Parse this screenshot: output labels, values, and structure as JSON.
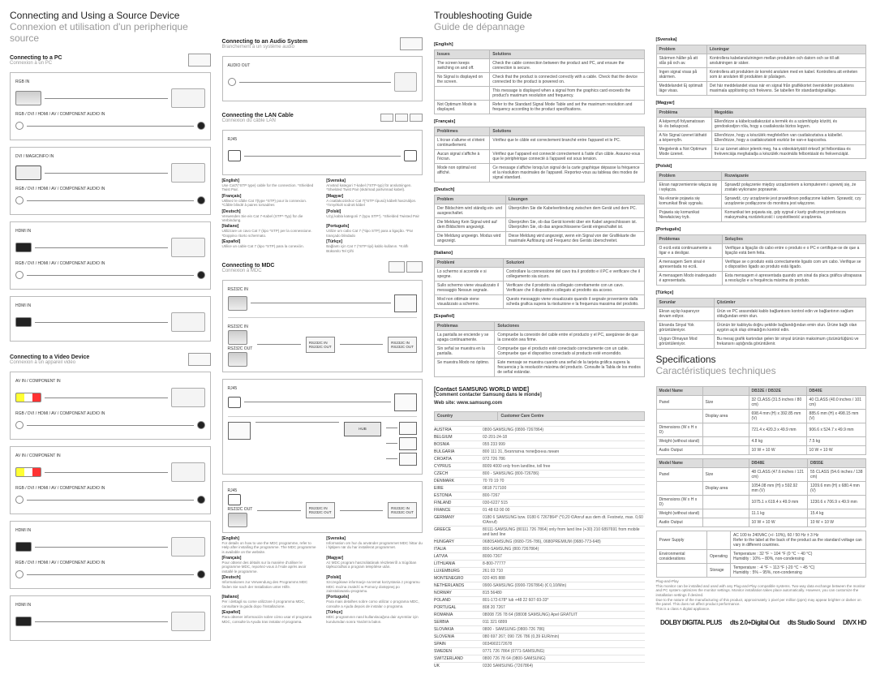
{
  "section1": {
    "title_en": "Connecting and Using a Source Device",
    "title_fr": "Connexion et utilisation d'un peripherique source",
    "connecting_pc_en": "Connecting to a PC",
    "connecting_pc_fr": "Connexion à un PC",
    "labels": {
      "rgb_in": "RGB IN",
      "rgb_combo": "RGB / DVI / HDMI / AV / COMPONENT AUDIO IN",
      "dvi": "DVI / MAGICINFO IN",
      "hdmi_in": "HDMI IN",
      "av_in": "AV IN / COMPONENT IN",
      "connecting_video_en": "Connecting to a Video Device",
      "connecting_video_fr": "Connexion à un appareil vidéo"
    }
  },
  "section2": {
    "audio_en": "Connecting to an Audio System",
    "audio_fr": "Branchement à un système audio",
    "audio_out": "AUDIO OUT",
    "lan_en": "Connecting the LAN Cable",
    "lan_fr": "Connexion du câble LAN",
    "rj45": "RJ45",
    "lang_notes": {
      "en": {
        "title": "[English]",
        "body": "Use Cat7(*STP type) cable for the connection. *Shielded Twist Pair."
      },
      "fr": {
        "title": "[Français]",
        "body": "Utilisez le câble Cat 7(type *STP) pour la connexion. *Câble blindé à paires torsadées"
      },
      "de": {
        "title": "[Deutsch]",
        "body": "Verwenden Sie ein Cat 7-Kabel (STP*-Typ) für die Verbindung."
      },
      "it": {
        "title": "[Italiano]",
        "body": "Utilizzare un cavo Cat 7 (tipo *STP) per la connessione. *Doppino ritorto schermato."
      },
      "es": {
        "title": "[Español]",
        "body": "Utilice un cable Cat 7 (tipo *STP) para la conexión."
      },
      "sv": {
        "title": "[Svenska]",
        "body": "Använd kategori 7-kabel (*STP-typ) för anslutningen. *Shielded Twist Pair (skärmad partvinnad kabel)."
      },
      "hu": {
        "title": "[Magyar]",
        "body": "A csatlakozáshoz Cat 7(*STP típusú) kábelt használjon. *Árnyékolt sodrott kábel"
      },
      "pl": {
        "title": "[Polski]",
        "body": "Użyj kabla kategorii 7 (typu STP*). *Shielded Twisted Pair"
      },
      "pt": {
        "title": "[Português]",
        "body": "Utilize um cabo Cat 7 (*tipo STP) para a ligação. *Par trançado blindado"
      },
      "tr": {
        "title": "[Türkçe]",
        "body": "Bağlantı için Cat 7 (*STP tipi) kablo kullanın. *Kılıflı Bükümlü Tel Çifti"
      }
    },
    "mdc_en": "Connecting to MDC",
    "mdc_fr": "Connexion à MDC",
    "rs232c_in": "RS232C IN",
    "rs232c_out": "RS232C OUT",
    "hub": "HUB",
    "mdc_notes": {
      "en": {
        "title": "[English]",
        "body": "For details on how to use the MDC programme, refer to Help after installing the programme. The MDC programme is available on the website."
      },
      "fr": {
        "title": "[Français]",
        "body": "Pour obtenir des détails sur la manière d'utiliser le programme MDC, reportez-vous à l'Aide après avoir installé le programme."
      },
      "de": {
        "title": "[Deutsch]",
        "body": "Informationen zur Verwendung des Programms MDC finden Sie nach der Installation unter Hilfe."
      },
      "it": {
        "title": "[Italiano]",
        "body": "Per i dettagli su come utilizzare il programma MDC, consultare la guida dopo l'installazione."
      },
      "es": {
        "title": "[Español]",
        "body": "Para obtener información sobre cómo usar el programa MDC, consulte la Ayuda tras instalar el programa."
      },
      "tr": {
        "title": "[Türkçe]",
        "body": "MDC programının nasıl kullanılacağına dair ayrıntılar için kurulumdan sonra Yardım'a bakın."
      },
      "sv": {
        "title": "[Svenska]",
        "body": "Information om hur du använder programmet MDC hittar du i hjälpen när du har installerat programmet."
      },
      "hu": {
        "title": "[Magyar]",
        "body": "Az MDC program használatának részleteiről a Súgóban tájékozódhat a program telepítése után."
      },
      "pl": {
        "title": "[Polski]",
        "body": "Szczegółowe informacje na temat korzystania z programu MDC można znaleźć w Pomocy dostępnej po zainstalowaniu programu."
      },
      "pt": {
        "title": "[Português]",
        "body": "Para mais detalhes sobre como utilizar o programa MDC, consulte a Ajuda depois de instalar o programa."
      }
    }
  },
  "trouble": {
    "title_en": "Troubleshooting Guide",
    "title_fr": "Guide de dépannage",
    "langs": {
      "English": {
        "cols": [
          "Issues",
          "Solutions"
        ],
        "rows": [
          [
            "The screen keeps switching on and off.",
            "Check the cable connection between the product and PC, and ensure the connection is secure."
          ],
          [
            "No Signal is displayed on the screen.",
            "Check that the product is connected correctly with a cable. Check that the device connected to the product is powered on."
          ],
          [
            "",
            "This message is displayed when a signal from the graphics card exceeds the product's maximum resolution and frequency."
          ],
          [
            "Not Optimum Mode is displayed.",
            "Refer to the Standard Signal Mode Table and set the maximum resolution and frequency according to the product specifications."
          ]
        ]
      },
      "Français": {
        "cols": [
          "Problèmes",
          "Solutions"
        ],
        "rows": [
          [
            "L'écran s'allume et s'éteint continuellement.",
            "Vérifiez que le câble est correctement branché entre l'appareil et le PC."
          ],
          [
            "Aucun signal s'affiche à l'écran.",
            "Vérifiez que l'appareil est connecté correctement à l'aide d'un câble. Assurez-vous que le périphérique connecté à l'appareil est sous tension."
          ],
          [
            "Mode non optimal est affiché.",
            "Ce message s'affiche lorsqu'un signal de la carte graphique dépasse la fréquence et la résolution maximales de l'appareil. Reportez-vous au tableau des modes de signal standard."
          ]
        ]
      },
      "Deutsch": {
        "cols": [
          "Problem",
          "Lösungen"
        ],
        "rows": [
          [
            "Der Bildschirm wird ständig ein- und ausgeschaltet.",
            "Überprüfen Sie die Kabelverbindung zwischen dem Gerät und dem PC."
          ],
          [
            "Die Meldung Kein Signal wird auf dem Bildschirm angezeigt.",
            "Überprüfen Sie, ob das Gerät korrekt über ein Kabel angeschlossen ist. Überprüfen Sie, ob das angeschlossene Gerät eingeschaltet ist."
          ],
          [
            "Die Meldung ungeeign. Modus wird angezeigt.",
            "Diese Meldung wird angezeigt, wenn ein Signal von der Grafikkarte die maximale Auflösung und Frequenz des Geräts überschreitet."
          ]
        ]
      },
      "Italiano": {
        "cols": [
          "Problemi",
          "Soluzioni"
        ],
        "rows": [
          [
            "Lo schermo si accende e si spegne.",
            "Controllare la connessione del cavo tra il prodotto e il PC e verificare che il collegamento sia sicuro."
          ],
          [
            "Sullo schermo viene visualizzato il messaggio Nessun segnale.",
            "Verificare che il prodotto sia collegato correttamente con un cavo. Verificare che il dispositivo collegato al prodotto sia acceso."
          ],
          [
            "Mod non ottimale viene visualizzato a schermo.",
            "Questo messaggio viene visualizzato quando il segnale proveniente dalla scheda grafica supera la risoluzione e la frequenza massima del prodotto."
          ]
        ]
      },
      "Español": {
        "cols": [
          "Problemas",
          "Soluciones"
        ],
        "rows": [
          [
            "La pantalla se enciende y se apaga continuamente.",
            "Compruebe la conexión del cable entre el producto y el PC, asegúrese de que la conexión sea firme."
          ],
          [
            "Sin señal se muestra en la pantalla.",
            "Compruebe que el producto esté conectado correctamente con un cable. Compruebe que el dispositivo conectado al producto esté encendido."
          ],
          [
            "Se muestra Modo no óptimo.",
            "Este mensaje se muestra cuando una señal de la tarjeta gráfica supera la frecuencia y la resolución máxima del producto. Consulte la Tabla de los modos de señal estándar."
          ]
        ]
      }
    },
    "contact_title": "[Contact SAMSUNG WORLD WIDE]",
    "contact_title_fr": "[Comment contacter Samsung dans le monde]",
    "contact_web": "Web site: www.samsung.com",
    "contact_cols": [
      "Country",
      "Customer Care Centre"
    ],
    "contacts": [
      [
        "AUSTRIA",
        "0800-SAMSUNG (0800-7267864)"
      ],
      [
        "BELGIUM",
        "02-201-24-18"
      ],
      [
        "BOSNIA",
        "055 233 999"
      ],
      [
        "BULGARIA",
        "800 111 31, Безплатна телефонна линия"
      ],
      [
        "CROATIA",
        "072 726 786"
      ],
      [
        "CYPRUS",
        "8009 4000 only from landline, toll free"
      ],
      [
        "CZECH",
        "800 - SAMSUNG (800-726786)"
      ],
      [
        "DENMARK",
        "70 70 19 70"
      ],
      [
        "EIRE",
        "0818 717100"
      ],
      [
        "ESTONIA",
        "800-7267"
      ],
      [
        "FINLAND",
        "030-6227 515"
      ],
      [
        "FRANCE",
        "01 48 63 00 00"
      ],
      [
        "GERMANY",
        "0180 6 SAMSUNG bzw. 0180 6 7267864* (*0,20 €/Anruf aus dem dt. Festnetz, max. 0,60 €/Anruf)"
      ],
      [
        "GREECE",
        "80111-SAMSUNG (80111 726 7864) only from land line (+30) 210 6897691 from mobile and land line"
      ],
      [
        "HUNGARY",
        "0680SAMSUNG (0680-726-786), 0680PREMIUM (0680-773-648)"
      ],
      [
        "ITALIA",
        "800-SAMSUNG (800.7267864)"
      ],
      [
        "LATVIA",
        "8000-7267"
      ],
      [
        "LITHUANIA",
        "8-800-77777"
      ],
      [
        "LUXEMBURG",
        "261 03 710"
      ],
      [
        "MONTENEGRO",
        "020 405 888"
      ],
      [
        "NETHERLANDS",
        "0900-SAMSUNG (0900-7267864) (€ 0,10/Min)"
      ],
      [
        "NORWAY",
        "815 56480"
      ],
      [
        "POLAND",
        "801-172-678* lub +48 22 607-93-33*"
      ],
      [
        "PORTUGAL",
        "808 20 7267"
      ],
      [
        "ROMANIA",
        "08008 726 78 64 (08008 SAMSUNG) Apel GRATUIT"
      ],
      [
        "SERBIA",
        "011 321 6899"
      ],
      [
        "SLOVAKIA",
        "0800 - SAMSUNG (0800-726 786)"
      ],
      [
        "SLOVENIA",
        "080 697 267; 090 726 786 (0,39 EUR/min)"
      ],
      [
        "SPAIN",
        "0034902172678"
      ],
      [
        "SWEDEN",
        "0771 726 7864 (0771-SAMSUNG)"
      ],
      [
        "SWITZERLAND",
        "0800 726 78 64 (0800-SAMSUNG)"
      ],
      [
        "UK",
        "0330 SAMSUNG (7267864)"
      ]
    ]
  },
  "trouble2": {
    "langs": {
      "Svenska": {
        "cols": [
          "Problem",
          "Lösningar"
        ],
        "rows": [
          [
            "Skärmen håller på att slås på och av.",
            "Kontrollera kabelanslutningen mellan produkten och datorn och se till att anslutningen är säker."
          ],
          [
            "Ingen signal visas på skärmen.",
            "Kontrollera att produkten är korrekt ansluten med en kabel. Kontrollera att enheten som är ansluten till produkten är påslagen."
          ],
          [
            "Meddelandet Ej optimalt läge visas.",
            "Det här meddelandet visas när en signal från grafikkortet överskrider produktens maximala upplösning och frekvens. Se tabellen för standardsignalläge."
          ]
        ]
      },
      "Magyar": {
        "cols": [
          "Probléma",
          "Megoldás"
        ],
        "rows": [
          [
            "A képernyő folyamatosan ki- és bekapcsol.",
            "Ellenőrizze a kábelcsatlakozást a termék és a számítógép között, és gondoskodjon róla, hogy a csatlakozás biztos legyen."
          ],
          [
            "A No Signal üzenet látható a képernyőn.",
            "Ellenőrizze, hogy a készülék megfelelően van csatlakoztatva a kábellel. Ellenőrizze, hogy a csatlakoztatott eszköz be van-e kapcsolva."
          ],
          [
            "Megjelenik a Not Optimum Mode üzenet.",
            "Ez az üzenet akkor jelenik meg, ha a videokártyától érkező jel felbontása és frekvenciája meghaladja a készülék maximális felbontását és frekvenciáját."
          ]
        ]
      },
      "Polski": {
        "cols": [
          "Problem",
          "Rozwiązanie"
        ],
        "rows": [
          [
            "Ekran naprzemiennie włącza się i wyłącza.",
            "Sprawdź połączenie między urządzeniem a komputerem i upewnij się, że zostało wykonane poprawnie."
          ],
          [
            "Na ekranie pojawia się komunikat Brak sygnału.",
            "Sprawdź, czy urządzenie jest prawidłowo podłączone kablem. Sprawdź, czy urządzenie podłączone do monitora jest włączone."
          ],
          [
            "Pojawia się komunikat Niewłaściwy tryb.",
            "Komunikat ten pojawia się, gdy sygnał z karty graficznej przekracza maksymalną rozdzielczość i częstotliwość urządzenia."
          ]
        ]
      },
      "Português": {
        "cols": [
          "Problemas",
          "Soluções"
        ],
        "rows": [
          [
            "O ecrã está continuamente a ligar e a desligar.",
            "Verifique a ligação do cabo entre o produto e o PC e certifique-se de que a ligação está bem feita."
          ],
          [
            "A mensagem Sem sinal é apresentada no ecrã.",
            "Verifique se o produto está correctamente ligado com um cabo. Verifique se o dispositivo ligado ao produto está ligado."
          ],
          [
            "A mensagem Modo inadequado é apresentada.",
            "Esta mensagem é apresentada quando um sinal da placa gráfica ultrapassa a resolução e a frequência máxima do produto."
          ]
        ]
      },
      "Türkçe": {
        "cols": [
          "Sorunlar",
          "Çözümler"
        ],
        "rows": [
          [
            "Ekran açılıp kapanıyor devam ediyor.",
            "Ürün ve PC arasındaki kablo bağlantısını kontrol edin ve bağlantının sağlam olduğundan emin olun."
          ],
          [
            "Ekranda Sinyal Yok görüntüleniyor.",
            "Ürünün bir kabloyla doğru şekilde bağlandığından emin olun. Ürüne bağlı olan aygıtın açık olup olmadığını kontrol edin."
          ],
          [
            "Uygun Olmayan Mod görüntüleniyor.",
            "Bu mesaj grafik kartından gelen bir sinyal ürünün maksimum çözünürlüğünü ve frekansını aştığında görüntülenir."
          ]
        ]
      }
    }
  },
  "specs": {
    "title_en": "Specifications",
    "title_fr": "Caractéristiques techniques",
    "headers": [
      "Model Name",
      "",
      "DB32E / DB32E",
      "DB40E"
    ],
    "rows1": [
      [
        "Panel",
        "Size",
        "32 CLASS (31.5 inches / 80 cm)",
        "40 CLASS (40.0 inches / 101 cm)"
      ],
      [
        "",
        "Display area",
        "698.4 mm (H) x 392.85 mm (V)",
        "885.6 mm (H) x 498.15 mm (V)"
      ],
      [
        "Dimensions (W x H x D)",
        "",
        "721.4 x 420.3 x 49.9 mm",
        "906.6 x 524.7 x 49.9 mm"
      ],
      [
        "Weight (without stand)",
        "",
        "4.8 kg",
        "7.5 kg"
      ],
      [
        "Audio Output",
        "",
        "10 W + 10 W",
        "10 W + 10 W"
      ]
    ],
    "headers2": [
      "Model Name",
      "",
      "DB48E",
      "DB55E"
    ],
    "rows2": [
      [
        "Panel",
        "Size",
        "48 CLASS (47.6 inches / 121 cm)",
        "55 CLASS (54.6 inches / 138 cm)"
      ],
      [
        "",
        "Display area",
        "1054.08 mm (H) x 592.92 mm (V)",
        "1209.6 mm (H) x 680.4 mm (V)"
      ],
      [
        "Dimensions (W x H x D)",
        "",
        "1075.1 x 619.4 x 49.9 mm",
        "1230.6 x 706.9 x 49.9 mm"
      ],
      [
        "Weight (without stand)",
        "",
        "11.1 kg",
        "15.4 kg"
      ],
      [
        "Audio Output",
        "",
        "10 W + 10 W",
        "10 W + 10 W"
      ]
    ],
    "rows3": [
      [
        "Power Supply",
        "",
        "AC 100 to 240VAC (+/- 10%), 60 / 50 Hz ± 3 Hz\nRefer to the label at the back of the product as the standard voltage can vary in different countries."
      ],
      [
        "Environmental considerations",
        "Operating",
        "Temperature : 32 °F ~ 104 °F (0 °C ~ 40 °C)\nHumidity : 10% – 80%, non-condensing"
      ],
      [
        "",
        "Storage",
        "Temperature : -4 °F ~ 113 °F (-20 °C ~ 45 °C)\nHumidity : 5% – 95%, non-condensing"
      ]
    ],
    "footer": "Plug-and-Play\nThis monitor can be installed and used with any Plug-and-Play compatible systems. Two-way data exchange between the monitor and PC system optimizes the monitor settings. Monitor installation takes place automatically. However, you can customize the installation settings if desired.\nDue to the nature of the manufacturing of this product, approximately 1 pixel per million (ppm) may appear brighter or darker on the panel. This does not affect product performance.\nThis is a class A digital appliance.",
    "brands": [
      "DOLBY DIGITAL PLUS",
      "dts 2.0+Digital Out",
      "dts Studio Sound",
      "DIVX HD"
    ]
  }
}
